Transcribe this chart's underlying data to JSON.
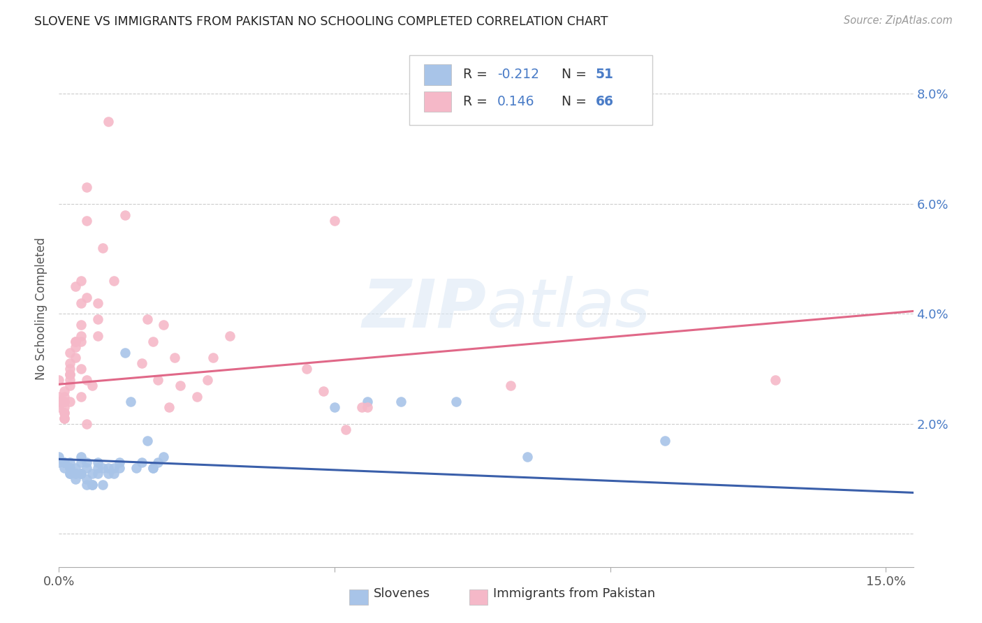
{
  "title": "SLOVENE VS IMMIGRANTS FROM PAKISTAN NO SCHOOLING COMPLETED CORRELATION CHART",
  "source": "Source: ZipAtlas.com",
  "ylabel": "No Schooling Completed",
  "yticks": [
    0.0,
    0.02,
    0.04,
    0.06,
    0.08
  ],
  "ytick_labels": [
    "",
    "2.0%",
    "4.0%",
    "6.0%",
    "8.0%"
  ],
  "xmin": 0.0,
  "xmax": 0.155,
  "ymin": -0.006,
  "ymax": 0.088,
  "blue_color": "#a8c4e8",
  "pink_color": "#f5b8c8",
  "blue_line_color": "#3a5faa",
  "pink_line_color": "#e06888",
  "watermark_zip": "ZIP",
  "watermark_atlas": "atlas",
  "blue_points": [
    [
      0.0,
      0.014
    ],
    [
      0.0,
      0.013
    ],
    [
      0.001,
      0.013
    ],
    [
      0.001,
      0.012
    ],
    [
      0.001,
      0.013
    ],
    [
      0.002,
      0.012
    ],
    [
      0.002,
      0.012
    ],
    [
      0.002,
      0.011
    ],
    [
      0.002,
      0.011
    ],
    [
      0.002,
      0.013
    ],
    [
      0.003,
      0.012
    ],
    [
      0.003,
      0.011
    ],
    [
      0.003,
      0.011
    ],
    [
      0.003,
      0.01
    ],
    [
      0.004,
      0.011
    ],
    [
      0.004,
      0.011
    ],
    [
      0.004,
      0.014
    ],
    [
      0.004,
      0.013
    ],
    [
      0.005,
      0.009
    ],
    [
      0.005,
      0.01
    ],
    [
      0.005,
      0.013
    ],
    [
      0.005,
      0.012
    ],
    [
      0.006,
      0.009
    ],
    [
      0.006,
      0.009
    ],
    [
      0.006,
      0.011
    ],
    [
      0.007,
      0.012
    ],
    [
      0.007,
      0.011
    ],
    [
      0.007,
      0.013
    ],
    [
      0.008,
      0.012
    ],
    [
      0.008,
      0.009
    ],
    [
      0.009,
      0.011
    ],
    [
      0.009,
      0.012
    ],
    [
      0.01,
      0.012
    ],
    [
      0.01,
      0.011
    ],
    [
      0.011,
      0.013
    ],
    [
      0.011,
      0.012
    ],
    [
      0.012,
      0.033
    ],
    [
      0.013,
      0.024
    ],
    [
      0.014,
      0.012
    ],
    [
      0.015,
      0.013
    ],
    [
      0.016,
      0.017
    ],
    [
      0.017,
      0.012
    ],
    [
      0.017,
      0.012
    ],
    [
      0.018,
      0.013
    ],
    [
      0.019,
      0.014
    ],
    [
      0.05,
      0.023
    ],
    [
      0.056,
      0.024
    ],
    [
      0.062,
      0.024
    ],
    [
      0.072,
      0.024
    ],
    [
      0.085,
      0.014
    ],
    [
      0.11,
      0.017
    ]
  ],
  "pink_points": [
    [
      0.0,
      0.028
    ],
    [
      0.0,
      0.025
    ],
    [
      0.0,
      0.024
    ],
    [
      0.0,
      0.023
    ],
    [
      0.001,
      0.025
    ],
    [
      0.001,
      0.024
    ],
    [
      0.001,
      0.026
    ],
    [
      0.001,
      0.024
    ],
    [
      0.001,
      0.022
    ],
    [
      0.001,
      0.021
    ],
    [
      0.001,
      0.022
    ],
    [
      0.001,
      0.021
    ],
    [
      0.001,
      0.023
    ],
    [
      0.002,
      0.028
    ],
    [
      0.002,
      0.024
    ],
    [
      0.002,
      0.03
    ],
    [
      0.002,
      0.029
    ],
    [
      0.002,
      0.029
    ],
    [
      0.002,
      0.031
    ],
    [
      0.002,
      0.033
    ],
    [
      0.002,
      0.027
    ],
    [
      0.003,
      0.035
    ],
    [
      0.003,
      0.034
    ],
    [
      0.003,
      0.035
    ],
    [
      0.003,
      0.032
    ],
    [
      0.003,
      0.045
    ],
    [
      0.004,
      0.046
    ],
    [
      0.004,
      0.042
    ],
    [
      0.004,
      0.038
    ],
    [
      0.004,
      0.035
    ],
    [
      0.004,
      0.036
    ],
    [
      0.004,
      0.03
    ],
    [
      0.004,
      0.025
    ],
    [
      0.005,
      0.057
    ],
    [
      0.005,
      0.043
    ],
    [
      0.005,
      0.063
    ],
    [
      0.005,
      0.028
    ],
    [
      0.005,
      0.02
    ],
    [
      0.006,
      0.027
    ],
    [
      0.007,
      0.039
    ],
    [
      0.007,
      0.036
    ],
    [
      0.007,
      0.042
    ],
    [
      0.008,
      0.052
    ],
    [
      0.009,
      0.075
    ],
    [
      0.01,
      0.046
    ],
    [
      0.012,
      0.058
    ],
    [
      0.015,
      0.031
    ],
    [
      0.016,
      0.039
    ],
    [
      0.017,
      0.035
    ],
    [
      0.018,
      0.028
    ],
    [
      0.019,
      0.038
    ],
    [
      0.02,
      0.023
    ],
    [
      0.021,
      0.032
    ],
    [
      0.022,
      0.027
    ],
    [
      0.025,
      0.025
    ],
    [
      0.027,
      0.028
    ],
    [
      0.028,
      0.032
    ],
    [
      0.031,
      0.036
    ],
    [
      0.045,
      0.03
    ],
    [
      0.048,
      0.026
    ],
    [
      0.05,
      0.057
    ],
    [
      0.052,
      0.019
    ],
    [
      0.055,
      0.023
    ],
    [
      0.056,
      0.023
    ],
    [
      0.082,
      0.027
    ],
    [
      0.13,
      0.028
    ]
  ],
  "blue_trendline_x": [
    0.0,
    0.155
  ],
  "blue_trendline_y": [
    0.0136,
    0.0075
  ],
  "pink_trendline_x": [
    0.0,
    0.155
  ],
  "pink_trendline_y": [
    0.0272,
    0.0405
  ]
}
